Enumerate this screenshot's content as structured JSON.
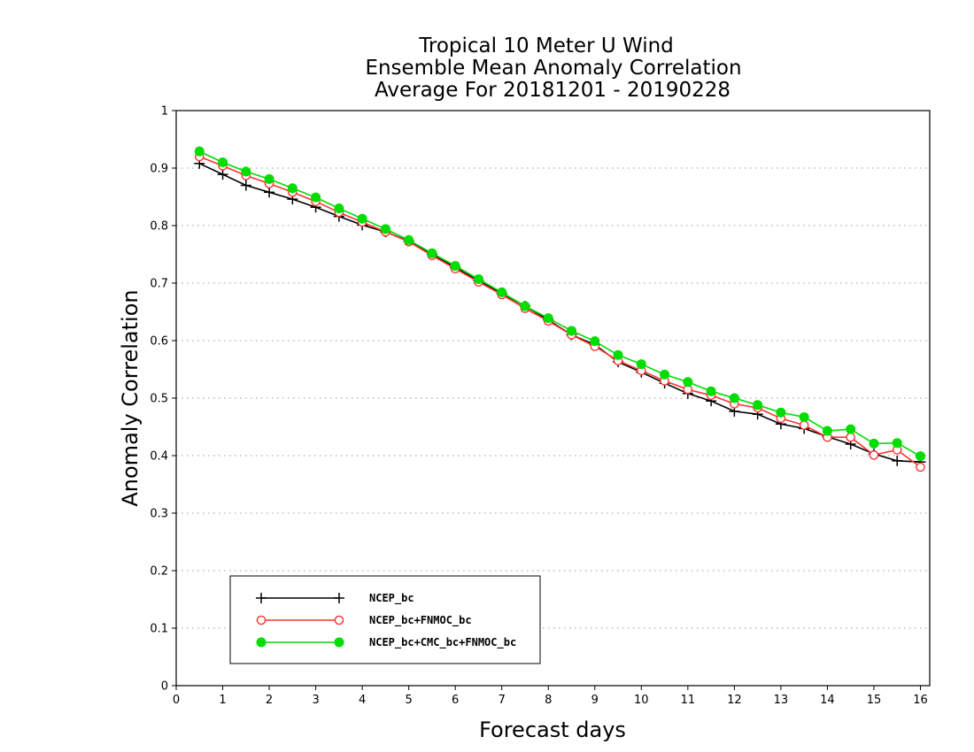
{
  "chart_data": {
    "type": "line",
    "title_lines": [
      "Tropical 10 Meter U Wind",
      "Ensemble Mean Anomaly Correlation",
      "Average For 20181201 - 20190228"
    ],
    "xlabel": "Forecast days",
    "ylabel": "Anomaly Correlation",
    "xlim": [
      0,
      16.2
    ],
    "ylim": [
      0,
      1
    ],
    "x_ticks": [
      0,
      1,
      2,
      3,
      4,
      5,
      6,
      7,
      8,
      9,
      10,
      11,
      12,
      13,
      14,
      15,
      16
    ],
    "y_ticks": [
      0,
      0.1,
      0.2,
      0.3,
      0.4,
      0.5,
      0.6,
      0.7,
      0.8,
      0.9,
      1
    ],
    "y_tick_labels": [
      "0",
      "0.1",
      "0.2",
      "0.3",
      "0.4",
      "0.5",
      "0.6",
      "0.7",
      "0.8",
      "0.9",
      "1"
    ],
    "grid": "horizontal dotted",
    "legend_position": "bottom-left",
    "x": [
      0.5,
      1,
      1.5,
      2,
      2.5,
      3,
      3.5,
      4,
      4.5,
      5,
      5.5,
      6,
      6.5,
      7,
      7.5,
      8,
      8.5,
      9,
      9.5,
      10,
      10.5,
      11,
      11.5,
      12,
      12.5,
      13,
      13.5,
      14,
      14.5,
      15,
      15.5,
      16
    ],
    "series": [
      {
        "name": "NCEP_bc",
        "color": "#000000",
        "marker": "plus",
        "values": [
          0.908,
          0.889,
          0.87,
          0.858,
          0.846,
          0.832,
          0.816,
          0.801,
          0.789,
          0.773,
          0.75,
          0.727,
          0.704,
          0.682,
          0.66,
          0.636,
          0.61,
          0.593,
          0.563,
          0.545,
          0.526,
          0.508,
          0.495,
          0.477,
          0.472,
          0.455,
          0.447,
          0.433,
          0.42,
          0.403,
          0.391,
          0.389
        ]
      },
      {
        "name": "NCEP_bc+FNMOC_bc",
        "color": "#ff3333",
        "marker": "open-circle",
        "values": [
          0.92,
          0.904,
          0.887,
          0.873,
          0.858,
          0.842,
          0.823,
          0.806,
          0.789,
          0.772,
          0.748,
          0.725,
          0.702,
          0.68,
          0.656,
          0.634,
          0.61,
          0.59,
          0.565,
          0.548,
          0.53,
          0.515,
          0.505,
          0.49,
          0.483,
          0.465,
          0.453,
          0.432,
          0.432,
          0.401,
          0.41,
          0.38
        ]
      },
      {
        "name": "NCEP_bc+CMC_bc+FNMOC_bc",
        "color": "#00dd00",
        "marker": "filled-circle",
        "values": [
          0.929,
          0.91,
          0.894,
          0.881,
          0.865,
          0.849,
          0.83,
          0.812,
          0.794,
          0.775,
          0.752,
          0.73,
          0.707,
          0.684,
          0.66,
          0.639,
          0.617,
          0.599,
          0.575,
          0.559,
          0.541,
          0.528,
          0.512,
          0.5,
          0.488,
          0.475,
          0.467,
          0.443,
          0.446,
          0.421,
          0.422,
          0.399
        ]
      }
    ]
  }
}
